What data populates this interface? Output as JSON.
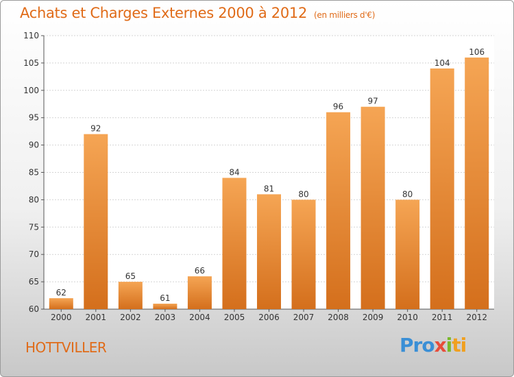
{
  "page": {
    "title": "Achats et Charges Externes 2000 à 2012",
    "subtitle": "(en milliers d'€)",
    "city": "HOTTVILLER",
    "logo": {
      "p1": "Pro",
      "p2": "x",
      "p3": "i",
      "p4": "ti"
    }
  },
  "colors": {
    "bar_top": "#f5a554",
    "bar_bottom": "#d46f1c",
    "accent": "#e06b18"
  },
  "chart_data": {
    "type": "bar",
    "categories": [
      "2000",
      "2001",
      "2002",
      "2003",
      "2004",
      "2005",
      "2006",
      "2007",
      "2008",
      "2009",
      "2010",
      "2011",
      "2012"
    ],
    "values": [
      62,
      92,
      65,
      61,
      66,
      84,
      81,
      80,
      96,
      97,
      80,
      104,
      106
    ],
    "data_labels": [
      "62",
      "92",
      "65",
      "61",
      "66",
      "84",
      "81",
      "80",
      "96",
      "97",
      "80",
      "104",
      "106"
    ],
    "ylim": [
      60,
      110
    ],
    "yticks": [
      60,
      65,
      70,
      75,
      80,
      85,
      90,
      95,
      100,
      105,
      110
    ],
    "grid": true
  }
}
